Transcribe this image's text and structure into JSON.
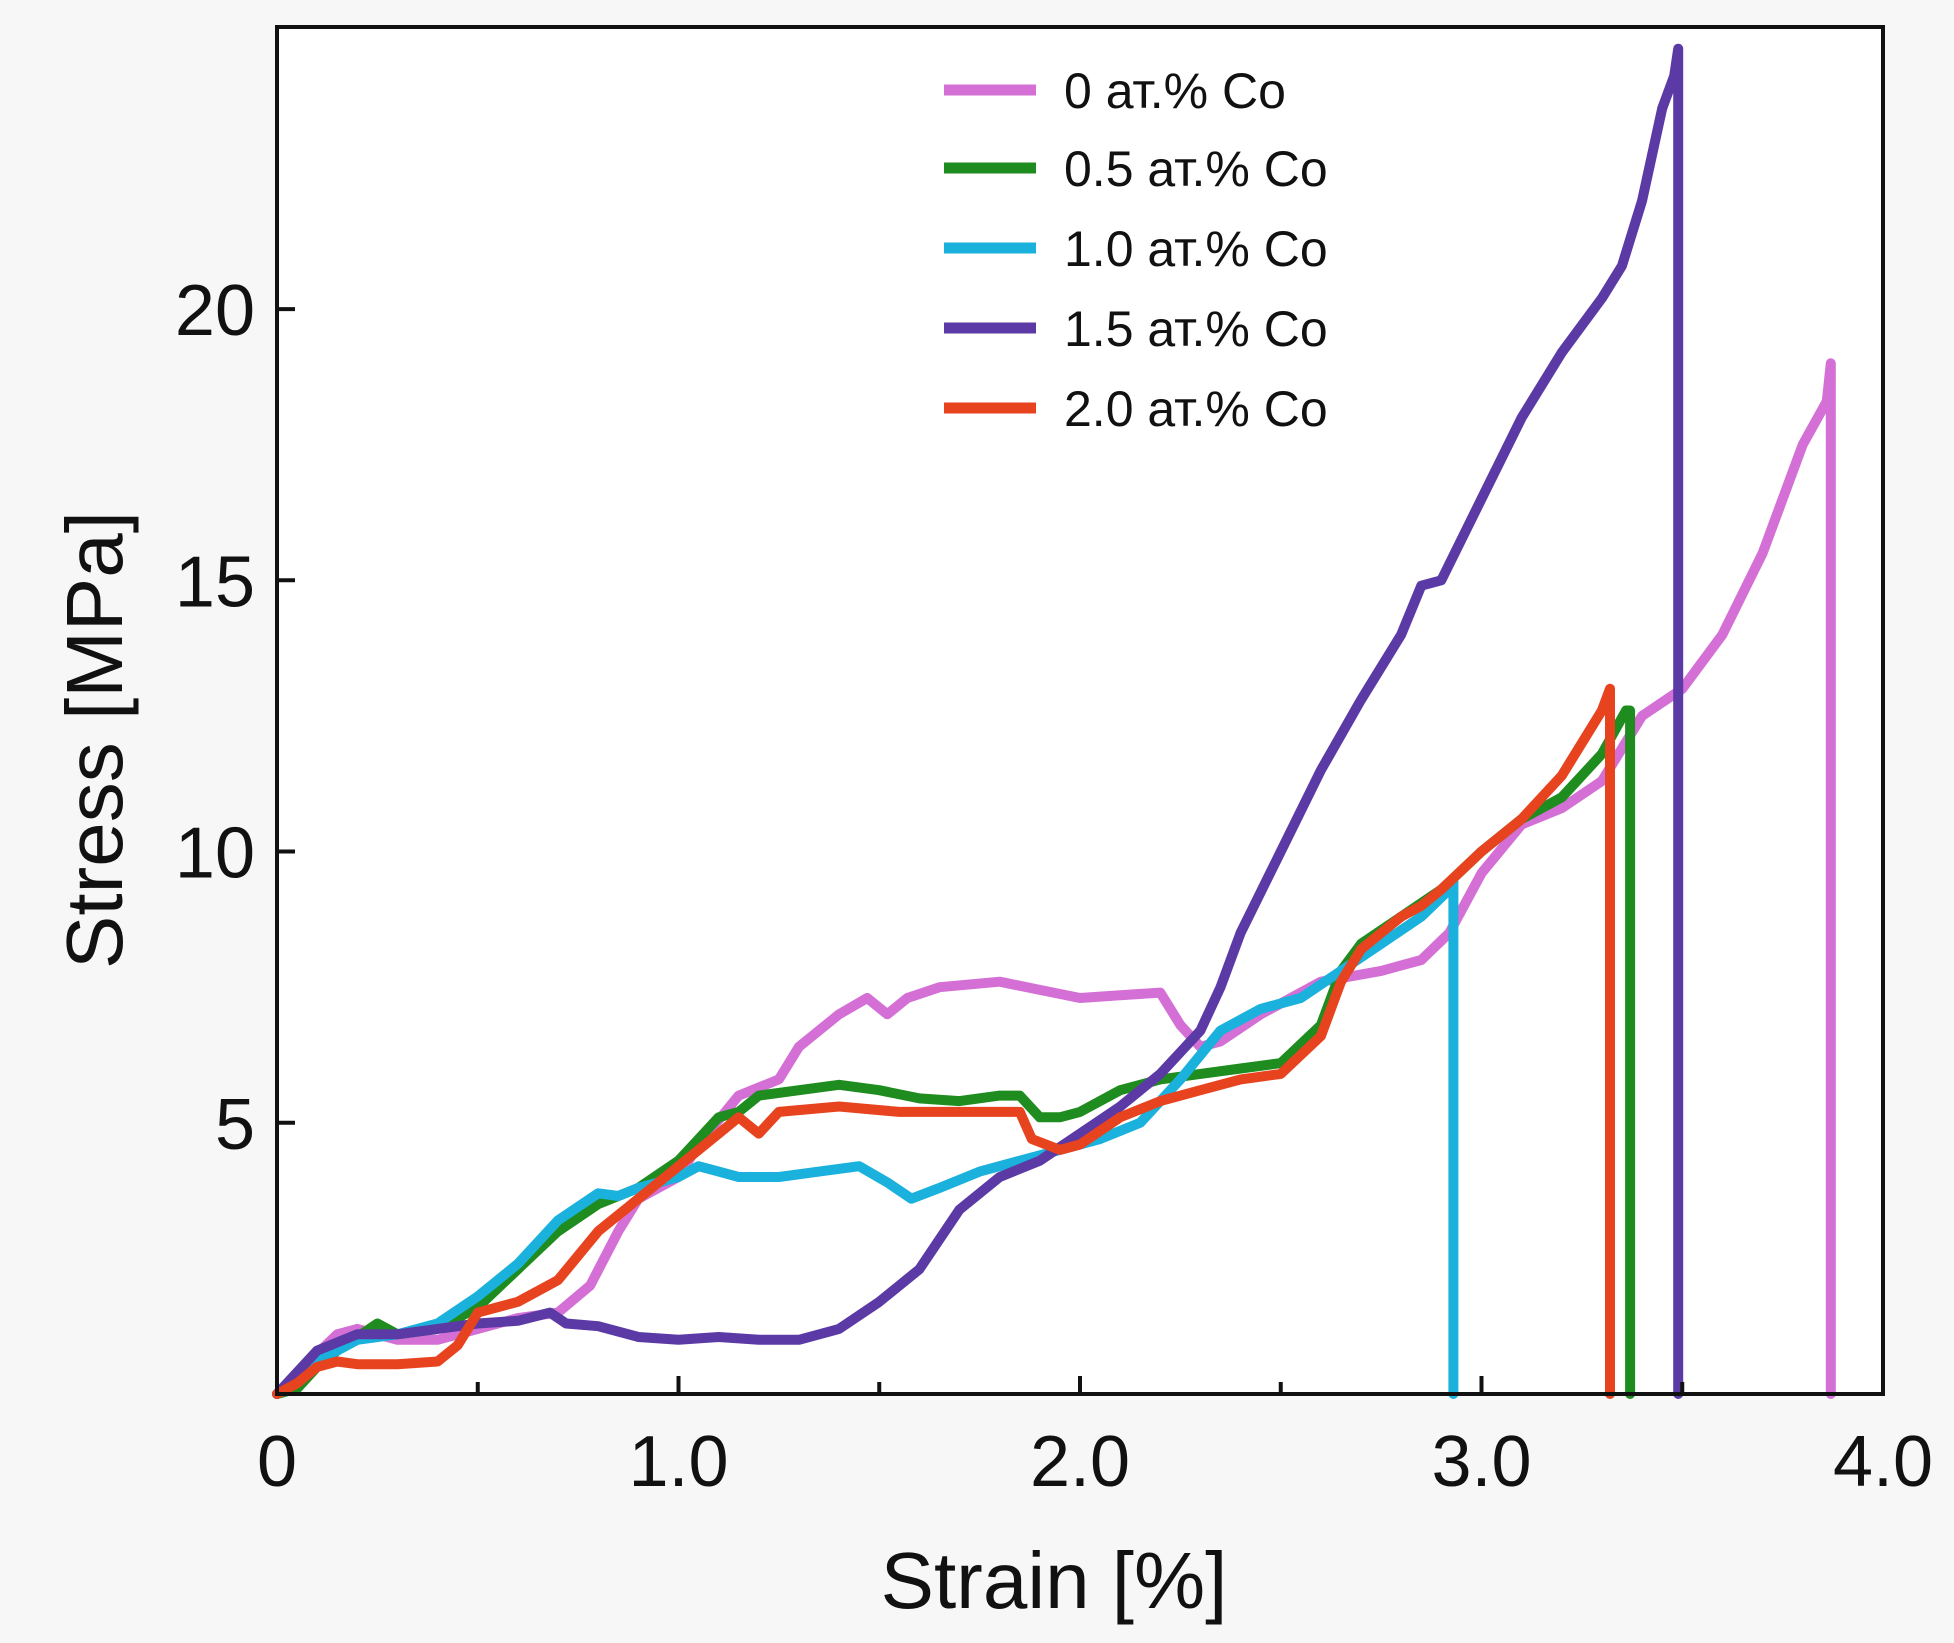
{
  "chart_data": {
    "type": "line",
    "title": "",
    "xlabel": "Strain [%]",
    "ylabel": "Stress [MPa]",
    "xlim": [
      0,
      4.0
    ],
    "ylim": [
      0,
      25.2
    ],
    "grid": false,
    "legend_position": "top-center",
    "x_ticks": [
      {
        "value": 0,
        "label": "0"
      },
      {
        "value": 1.0,
        "label": "1.0"
      },
      {
        "value": 2.0,
        "label": "2.0"
      },
      {
        "value": 3.0,
        "label": "3.0"
      },
      {
        "value": 4.0,
        "label": "4.0"
      }
    ],
    "x_minor_ticks": [
      0.5,
      1.5,
      2.5,
      3.5
    ],
    "y_ticks": [
      {
        "value": 5,
        "label": "5"
      },
      {
        "value": 10,
        "label": "10"
      },
      {
        "value": 15,
        "label": "15"
      },
      {
        "value": 20,
        "label": "20"
      }
    ],
    "series": [
      {
        "name": "0 ат.% Co",
        "color": "#d46fd6",
        "points": [
          [
            0,
            0
          ],
          [
            0.08,
            0.6
          ],
          [
            0.15,
            1.1
          ],
          [
            0.2,
            1.2
          ],
          [
            0.3,
            1.0
          ],
          [
            0.4,
            1.0
          ],
          [
            0.5,
            1.2
          ],
          [
            0.6,
            1.4
          ],
          [
            0.7,
            1.5
          ],
          [
            0.78,
            2.0
          ],
          [
            0.85,
            3.0
          ],
          [
            0.9,
            3.6
          ],
          [
            1.0,
            4.0
          ],
          [
            1.05,
            4.6
          ],
          [
            1.15,
            5.5
          ],
          [
            1.25,
            5.8
          ],
          [
            1.3,
            6.4
          ],
          [
            1.4,
            7.0
          ],
          [
            1.47,
            7.3
          ],
          [
            1.52,
            7.0
          ],
          [
            1.57,
            7.3
          ],
          [
            1.65,
            7.5
          ],
          [
            1.8,
            7.6
          ],
          [
            1.9,
            7.45
          ],
          [
            2.0,
            7.3
          ],
          [
            2.1,
            7.35
          ],
          [
            2.2,
            7.4
          ],
          [
            2.25,
            6.8
          ],
          [
            2.3,
            6.4
          ],
          [
            2.35,
            6.5
          ],
          [
            2.45,
            7.0
          ],
          [
            2.6,
            7.6
          ],
          [
            2.75,
            7.8
          ],
          [
            2.85,
            8.0
          ],
          [
            2.92,
            8.5
          ],
          [
            3.0,
            9.6
          ],
          [
            3.1,
            10.5
          ],
          [
            3.2,
            10.8
          ],
          [
            3.3,
            11.3
          ],
          [
            3.4,
            12.5
          ],
          [
            3.5,
            13.0
          ],
          [
            3.6,
            14.0
          ],
          [
            3.7,
            15.5
          ],
          [
            3.8,
            17.5
          ],
          [
            3.86,
            18.3
          ],
          [
            3.87,
            19.0
          ],
          [
            3.87,
            0
          ]
        ]
      },
      {
        "name": "0.5 ат.% Co",
        "color": "#1e8c1e",
        "points": [
          [
            0,
            0
          ],
          [
            0.05,
            0.1
          ],
          [
            0.1,
            0.5
          ],
          [
            0.15,
            0.8
          ],
          [
            0.25,
            1.3
          ],
          [
            0.3,
            1.1
          ],
          [
            0.4,
            1.2
          ],
          [
            0.5,
            1.6
          ],
          [
            0.6,
            2.3
          ],
          [
            0.7,
            3.0
          ],
          [
            0.8,
            3.5
          ],
          [
            0.9,
            3.8
          ],
          [
            1.0,
            4.3
          ],
          [
            1.05,
            4.7
          ],
          [
            1.1,
            5.1
          ],
          [
            1.15,
            5.2
          ],
          [
            1.2,
            5.5
          ],
          [
            1.3,
            5.6
          ],
          [
            1.4,
            5.7
          ],
          [
            1.5,
            5.6
          ],
          [
            1.6,
            5.45
          ],
          [
            1.7,
            5.4
          ],
          [
            1.8,
            5.5
          ],
          [
            1.85,
            5.5
          ],
          [
            1.9,
            5.1
          ],
          [
            1.95,
            5.1
          ],
          [
            2.0,
            5.2
          ],
          [
            2.1,
            5.6
          ],
          [
            2.2,
            5.8
          ],
          [
            2.3,
            5.9
          ],
          [
            2.4,
            6.0
          ],
          [
            2.5,
            6.1
          ],
          [
            2.6,
            6.8
          ],
          [
            2.65,
            7.8
          ],
          [
            2.7,
            8.3
          ],
          [
            2.8,
            8.8
          ],
          [
            2.9,
            9.3
          ],
          [
            3.0,
            10.0
          ],
          [
            3.1,
            10.6
          ],
          [
            3.2,
            11.0
          ],
          [
            3.3,
            11.8
          ],
          [
            3.36,
            12.6
          ],
          [
            3.37,
            12.6
          ],
          [
            3.37,
            0
          ]
        ]
      },
      {
        "name": "1.0 ат.% Co",
        "color": "#1ab1dd",
        "points": [
          [
            0,
            0
          ],
          [
            0.05,
            0.3
          ],
          [
            0.1,
            0.6
          ],
          [
            0.2,
            1.0
          ],
          [
            0.3,
            1.1
          ],
          [
            0.4,
            1.3
          ],
          [
            0.5,
            1.8
          ],
          [
            0.6,
            2.4
          ],
          [
            0.7,
            3.2
          ],
          [
            0.8,
            3.7
          ],
          [
            0.85,
            3.65
          ],
          [
            0.9,
            3.8
          ],
          [
            1.0,
            4.0
          ],
          [
            1.05,
            4.2
          ],
          [
            1.1,
            4.1
          ],
          [
            1.15,
            4.0
          ],
          [
            1.25,
            4.0
          ],
          [
            1.35,
            4.1
          ],
          [
            1.45,
            4.2
          ],
          [
            1.52,
            3.9
          ],
          [
            1.58,
            3.6
          ],
          [
            1.65,
            3.8
          ],
          [
            1.75,
            4.1
          ],
          [
            1.85,
            4.3
          ],
          [
            1.95,
            4.5
          ],
          [
            2.05,
            4.7
          ],
          [
            2.15,
            5.0
          ],
          [
            2.25,
            5.8
          ],
          [
            2.35,
            6.7
          ],
          [
            2.45,
            7.1
          ],
          [
            2.55,
            7.3
          ],
          [
            2.65,
            7.8
          ],
          [
            2.75,
            8.3
          ],
          [
            2.85,
            8.8
          ],
          [
            2.92,
            9.3
          ],
          [
            2.93,
            9.5
          ],
          [
            2.93,
            0
          ]
        ]
      },
      {
        "name": "1.5 ат.% Co",
        "color": "#5b3aa6",
        "points": [
          [
            0,
            0
          ],
          [
            0.05,
            0.4
          ],
          [
            0.1,
            0.8
          ],
          [
            0.2,
            1.1
          ],
          [
            0.3,
            1.1
          ],
          [
            0.4,
            1.2
          ],
          [
            0.5,
            1.3
          ],
          [
            0.6,
            1.35
          ],
          [
            0.68,
            1.5
          ],
          [
            0.72,
            1.3
          ],
          [
            0.8,
            1.25
          ],
          [
            0.9,
            1.05
          ],
          [
            1.0,
            1.0
          ],
          [
            1.1,
            1.05
          ],
          [
            1.2,
            1.0
          ],
          [
            1.3,
            1.0
          ],
          [
            1.4,
            1.2
          ],
          [
            1.5,
            1.7
          ],
          [
            1.6,
            2.3
          ],
          [
            1.7,
            3.4
          ],
          [
            1.8,
            4.0
          ],
          [
            1.9,
            4.3
          ],
          [
            2.0,
            4.8
          ],
          [
            2.1,
            5.3
          ],
          [
            2.2,
            5.9
          ],
          [
            2.3,
            6.7
          ],
          [
            2.35,
            7.5
          ],
          [
            2.4,
            8.5
          ],
          [
            2.5,
            10.0
          ],
          [
            2.6,
            11.5
          ],
          [
            2.7,
            12.8
          ],
          [
            2.8,
            14.0
          ],
          [
            2.85,
            14.9
          ],
          [
            2.9,
            15.0
          ],
          [
            3.0,
            16.5
          ],
          [
            3.1,
            18.0
          ],
          [
            3.2,
            19.2
          ],
          [
            3.3,
            20.2
          ],
          [
            3.35,
            20.8
          ],
          [
            3.4,
            22.0
          ],
          [
            3.45,
            23.7
          ],
          [
            3.48,
            24.3
          ],
          [
            3.49,
            24.8
          ],
          [
            3.49,
            0
          ]
        ]
      },
      {
        "name": "2.0 ат.% Co",
        "color": "#e8431f",
        "points": [
          [
            0,
            0
          ],
          [
            0.05,
            0.2
          ],
          [
            0.1,
            0.5
          ],
          [
            0.15,
            0.6
          ],
          [
            0.2,
            0.55
          ],
          [
            0.3,
            0.55
          ],
          [
            0.4,
            0.6
          ],
          [
            0.45,
            0.9
          ],
          [
            0.5,
            1.5
          ],
          [
            0.6,
            1.7
          ],
          [
            0.7,
            2.1
          ],
          [
            0.8,
            3.0
          ],
          [
            0.9,
            3.6
          ],
          [
            1.0,
            4.2
          ],
          [
            1.1,
            4.8
          ],
          [
            1.15,
            5.1
          ],
          [
            1.2,
            4.8
          ],
          [
            1.25,
            5.2
          ],
          [
            1.4,
            5.3
          ],
          [
            1.55,
            5.2
          ],
          [
            1.7,
            5.2
          ],
          [
            1.85,
            5.2
          ],
          [
            1.88,
            4.7
          ],
          [
            1.95,
            4.5
          ],
          [
            2.0,
            4.6
          ],
          [
            2.1,
            5.1
          ],
          [
            2.2,
            5.4
          ],
          [
            2.3,
            5.6
          ],
          [
            2.4,
            5.8
          ],
          [
            2.5,
            5.9
          ],
          [
            2.6,
            6.6
          ],
          [
            2.65,
            7.6
          ],
          [
            2.7,
            8.2
          ],
          [
            2.8,
            8.8
          ],
          [
            2.85,
            9.0
          ],
          [
            2.9,
            9.3
          ],
          [
            3.0,
            10.0
          ],
          [
            3.1,
            10.6
          ],
          [
            3.2,
            11.4
          ],
          [
            3.3,
            12.6
          ],
          [
            3.32,
            13.0
          ],
          [
            3.32,
            0
          ]
        ]
      }
    ]
  }
}
